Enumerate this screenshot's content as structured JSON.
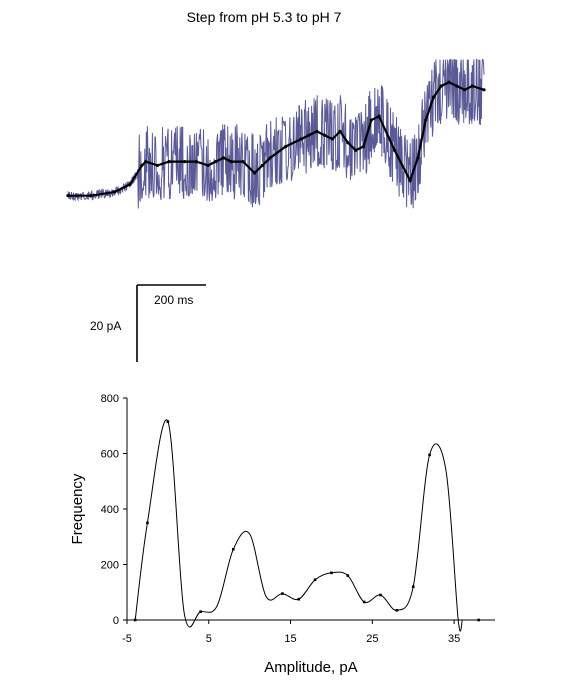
{
  "chart_data": [
    {
      "type": "line",
      "title": "Step from pH 5.3 to pH 7",
      "colors": {
        "raw": "#5a5a96",
        "smoothed": "#000000"
      },
      "x_unit": "ms",
      "y_unit": "pA",
      "xlim": [
        0,
        1070
      ],
      "ylim": [
        -3,
        38
      ],
      "smoothed_trace": {
        "x": [
          0,
          60,
          120,
          160,
          190,
          200,
          230,
          260,
          300,
          330,
          360,
          380,
          400,
          420,
          450,
          480,
          500,
          520,
          560,
          600,
          620,
          640,
          660,
          680,
          700,
          720,
          740,
          760,
          780,
          800,
          840,
          880,
          900,
          920,
          940,
          960,
          980,
          1000,
          1020,
          1040,
          1070
        ],
        "y": [
          0,
          0,
          1,
          3,
          8,
          9,
          8,
          9,
          9,
          9,
          8,
          9,
          10,
          9,
          9,
          6,
          8,
          10,
          13,
          15,
          16,
          17,
          16,
          15,
          17,
          14,
          12,
          13,
          20,
          21,
          12,
          4,
          10,
          20,
          26,
          29,
          30,
          29,
          28,
          29,
          28
        ]
      },
      "scale_bar": {
        "time_label": "200 ms",
        "current_label": "20 pA"
      }
    },
    {
      "type": "line",
      "xlabel": "Amplitude, pA",
      "ylabel": "Frequency",
      "xlim": [
        -5,
        40
      ],
      "ylim": [
        0,
        800
      ],
      "x_ticks": [
        "-5",
        "5",
        "15",
        "25",
        "35"
      ],
      "y_ticks": [
        "0",
        "200",
        "400",
        "600",
        "800"
      ],
      "series": [
        {
          "x": [
            -4,
            -2.5,
            0,
            2,
            4,
            6,
            8,
            10,
            12,
            14,
            16,
            18,
            20,
            22,
            24,
            26,
            28,
            30,
            32,
            34,
            35.5,
            36
          ],
          "y": [
            0,
            350,
            715,
            25,
            30,
            50,
            255,
            310,
            85,
            95,
            75,
            145,
            170,
            160,
            65,
            90,
            35,
            120,
            595,
            540,
            0,
            0
          ]
        }
      ],
      "points": {
        "x": [
          -4,
          -2.5,
          0,
          4,
          8,
          14,
          16,
          18,
          20,
          22,
          24,
          26,
          28,
          30,
          32,
          38
        ],
        "y": [
          0,
          350,
          715,
          30,
          255,
          95,
          75,
          145,
          170,
          160,
          65,
          90,
          35,
          120,
          595,
          0
        ]
      }
    }
  ]
}
